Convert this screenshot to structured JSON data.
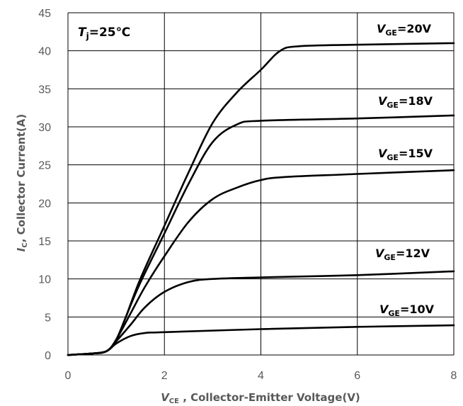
{
  "chart_data": {
    "type": "line",
    "title": "",
    "condition": {
      "var": "T",
      "sub": "j",
      "rest": "=25℃"
    },
    "xlabel": {
      "var": "V",
      "sub": "CE",
      "rest": " , Collector-Emitter Voltage(V)"
    },
    "ylabel": {
      "var": "I",
      "sub": "C",
      "rest": ", Collector Current(A)"
    },
    "xlim": [
      0,
      8
    ],
    "ylim": [
      0,
      45
    ],
    "xticks": [
      "0",
      "2",
      "4",
      "6",
      "8"
    ],
    "yticks": [
      "0",
      "5",
      "10",
      "15",
      "20",
      "25",
      "30",
      "35",
      "40",
      "45"
    ],
    "grid": true,
    "series": [
      {
        "name": "VGE=20V",
        "label": {
          "var": "V",
          "sub": "GE",
          "rest": "=20V"
        },
        "points": [
          [
            0,
            0
          ],
          [
            0.5,
            0.2
          ],
          [
            0.8,
            0.5
          ],
          [
            1.0,
            2
          ],
          [
            1.2,
            5
          ],
          [
            1.5,
            10
          ],
          [
            2.0,
            17
          ],
          [
            2.5,
            24
          ],
          [
            3.0,
            30.5
          ],
          [
            3.5,
            34.5
          ],
          [
            4.0,
            37.5
          ],
          [
            4.4,
            40
          ],
          [
            4.8,
            40.6
          ],
          [
            6.0,
            40.8
          ],
          [
            8.0,
            41
          ]
        ]
      },
      {
        "name": "VGE=18V",
        "label": {
          "var": "V",
          "sub": "GE",
          "rest": "=18V"
        },
        "points": [
          [
            0,
            0
          ],
          [
            0.5,
            0.2
          ],
          [
            0.8,
            0.5
          ],
          [
            1.0,
            2
          ],
          [
            1.2,
            5
          ],
          [
            1.5,
            9.5
          ],
          [
            2.0,
            16
          ],
          [
            2.5,
            22.5
          ],
          [
            3.0,
            28
          ],
          [
            3.5,
            30.3
          ],
          [
            4.0,
            30.8
          ],
          [
            6.0,
            31.1
          ],
          [
            8.0,
            31.5
          ]
        ]
      },
      {
        "name": "VGE=15V",
        "label": {
          "var": "V",
          "sub": "GE",
          "rest": "=15V"
        },
        "points": [
          [
            0,
            0
          ],
          [
            0.5,
            0.2
          ],
          [
            0.8,
            0.5
          ],
          [
            1.0,
            2
          ],
          [
            1.3,
            5.5
          ],
          [
            1.6,
            9
          ],
          [
            2.0,
            13
          ],
          [
            2.5,
            17.5
          ],
          [
            3.0,
            20.5
          ],
          [
            3.5,
            22
          ],
          [
            4.0,
            23
          ],
          [
            4.5,
            23.4
          ],
          [
            6.0,
            23.8
          ],
          [
            8.0,
            24.3
          ]
        ]
      },
      {
        "name": "VGE=12V",
        "label": {
          "var": "V",
          "sub": "GE",
          "rest": "=12V"
        },
        "points": [
          [
            0,
            0
          ],
          [
            0.5,
            0.2
          ],
          [
            0.8,
            0.5
          ],
          [
            1.0,
            1.8
          ],
          [
            1.3,
            4
          ],
          [
            1.6,
            6.3
          ],
          [
            2.0,
            8.3
          ],
          [
            2.5,
            9.6
          ],
          [
            3.0,
            10
          ],
          [
            4.0,
            10.2
          ],
          [
            6.0,
            10.5
          ],
          [
            8.0,
            11
          ]
        ]
      },
      {
        "name": "VGE=10V",
        "label": {
          "var": "V",
          "sub": "GE",
          "rest": "=10V"
        },
        "points": [
          [
            0,
            0
          ],
          [
            0.5,
            0.2
          ],
          [
            0.8,
            0.5
          ],
          [
            1.0,
            1.5
          ],
          [
            1.3,
            2.5
          ],
          [
            1.6,
            2.9
          ],
          [
            2.0,
            3.0
          ],
          [
            4.0,
            3.4
          ],
          [
            6.0,
            3.7
          ],
          [
            8.0,
            3.9
          ]
        ]
      }
    ]
  }
}
